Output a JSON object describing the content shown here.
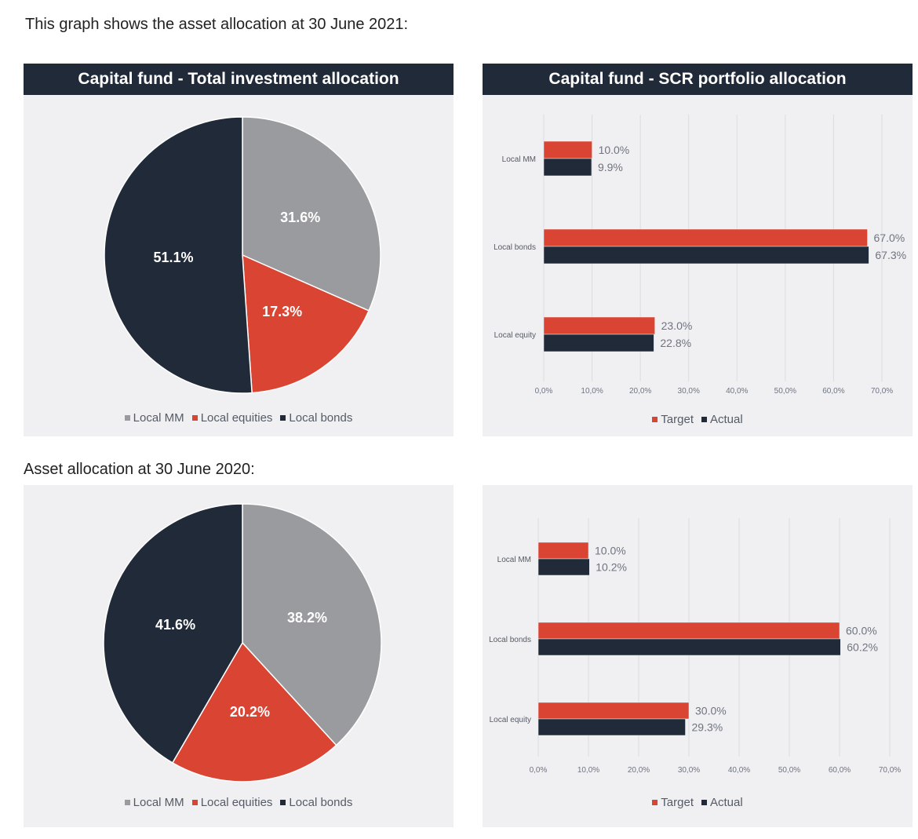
{
  "captions": {
    "top": "This graph shows the asset allocation at 30 June 2021:",
    "bottom": "Asset allocation at 30 June 2020:"
  },
  "colors": {
    "local_mm": "#9a9b9e",
    "local_equities": "#d94433",
    "local_bonds": "#212a38",
    "target": "#d94433",
    "actual": "#212a38",
    "title_bar": "#212a38",
    "panel_bg": "#f0f0f2"
  },
  "panels": {
    "pie2021": {
      "title": "Capital fund - Total investment allocation"
    },
    "bar2021": {
      "title": "Capital fund - SCR portfolio allocation"
    }
  },
  "pie_legend": {
    "mm": "Local MM",
    "equities": "Local equities",
    "bonds": "Local bonds"
  },
  "bar_legend": {
    "target": "Target",
    "actual": "Actual"
  },
  "chart_data": [
    {
      "id": "pie2021",
      "type": "pie",
      "title": "Capital fund - Total investment allocation",
      "slices": [
        {
          "name": "Local MM",
          "value": 31.6,
          "label": "31.6%"
        },
        {
          "name": "Local equities",
          "value": 17.3,
          "label": "17.3%"
        },
        {
          "name": "Local bonds",
          "value": 51.1,
          "label": "51.1%"
        }
      ]
    },
    {
      "id": "bar2021",
      "type": "bar",
      "orientation": "horizontal",
      "title": "Capital fund - SCR portfolio allocation",
      "categories": [
        "Local MM",
        "Local bonds",
        "Local equity"
      ],
      "series": [
        {
          "name": "Target",
          "values": [
            10.0,
            67.0,
            23.0
          ],
          "labels": [
            "10.0%",
            "67.0%",
            "23.0%"
          ]
        },
        {
          "name": "Actual",
          "values": [
            9.9,
            67.3,
            22.8
          ],
          "labels": [
            "9.9%",
            "67.3%",
            "22.8%"
          ]
        }
      ],
      "xlim": [
        0,
        70
      ],
      "ticks": [
        "0,0%",
        "10,0%",
        "20,0%",
        "30,0%",
        "40,0%",
        "50,0%",
        "60,0%",
        "70,0%"
      ],
      "legend": "bottom"
    },
    {
      "id": "pie2020",
      "type": "pie",
      "title": "",
      "slices": [
        {
          "name": "Local MM",
          "value": 38.2,
          "label": "38.2%"
        },
        {
          "name": "Local equities",
          "value": 20.2,
          "label": "20.2%"
        },
        {
          "name": "Local bonds",
          "value": 41.6,
          "label": "41.6%"
        }
      ]
    },
    {
      "id": "bar2020",
      "type": "bar",
      "orientation": "horizontal",
      "title": "",
      "categories": [
        "Local MM",
        "Local bonds",
        "Local equity"
      ],
      "series": [
        {
          "name": "Target",
          "values": [
            10.0,
            60.0,
            30.0
          ],
          "labels": [
            "10.0%",
            "60.0%",
            "30.0%"
          ]
        },
        {
          "name": "Actual",
          "values": [
            10.2,
            60.2,
            29.3
          ],
          "labels": [
            "10.2%",
            "60.2%",
            "29.3%"
          ]
        }
      ],
      "xlim": [
        0,
        70
      ],
      "ticks": [
        "0,0%",
        "10,0%",
        "20,0%",
        "30,0%",
        "40,0%",
        "50,0%",
        "60,0%",
        "70,0%"
      ],
      "legend": "bottom"
    }
  ]
}
